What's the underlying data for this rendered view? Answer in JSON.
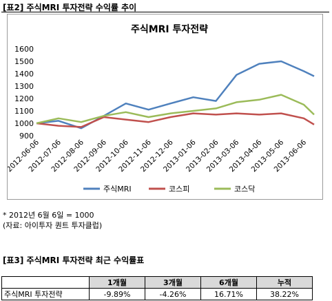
{
  "captions": {
    "chart_caption": "[표2] 주식MRI 투자전략 수익률 추이",
    "table_caption": "[표3] 주식MRI 투자전략 최근 수익률표"
  },
  "notes": {
    "base_note": "* 2012년 6월 6일 = 1000",
    "source_note": "(자료: 아이투자 퀀트 투자클럽)"
  },
  "colors": {
    "mri": "#4F81BD",
    "kospi": "#C0504D",
    "kosdaq": "#9BBB59"
  },
  "chart_data": {
    "type": "line",
    "title": "주식MRI 투자전략",
    "x": [
      "2012-06-06",
      "2012-07-06",
      "2012-08-06",
      "2012-09-06",
      "2012-10-06",
      "2012-11-06",
      "2012-12-06",
      "2013-01-06",
      "2013-02-06",
      "2013-03-06",
      "2013-04-06",
      "2013-05-06",
      "2013-06-06",
      "2013-06-20"
    ],
    "xticks": [
      "2012-06-06",
      "2012-07-06",
      "2012-08-06",
      "2012-09-06",
      "2012-10-06",
      "2012-11-06",
      "2012-12-06",
      "2013-01-06",
      "2013-02-06",
      "2013-03-06",
      "2013-04-06",
      "2013-05-06",
      "2013-06-06"
    ],
    "ylim": [
      900,
      1600
    ],
    "yticks": [
      "900",
      "1000",
      "1100",
      "1200",
      "1300",
      "1400",
      "1500",
      "1600"
    ],
    "grid": false,
    "legend": "bottom",
    "series": [
      {
        "name": "주식MRI",
        "values": [
          1000,
          1020,
          960,
          1060,
          1160,
          1110,
          1160,
          1210,
          1180,
          1390,
          1480,
          1500,
          1420,
          1380
        ]
      },
      {
        "name": "코스피",
        "values": [
          1000,
          980,
          970,
          1050,
          1030,
          1010,
          1050,
          1080,
          1070,
          1080,
          1070,
          1080,
          1040,
          990
        ]
      },
      {
        "name": "코스닥",
        "values": [
          1000,
          1040,
          1010,
          1060,
          1090,
          1050,
          1080,
          1100,
          1120,
          1170,
          1190,
          1230,
          1150,
          1070
        ]
      }
    ]
  },
  "table": {
    "headers": [
      "",
      "1개월",
      "3개월",
      "6개월",
      "누적"
    ],
    "rows": [
      [
        "주식MRI 투자전략",
        "-9.89%",
        "-4.26%",
        "16.71%",
        "38.22%"
      ]
    ]
  }
}
